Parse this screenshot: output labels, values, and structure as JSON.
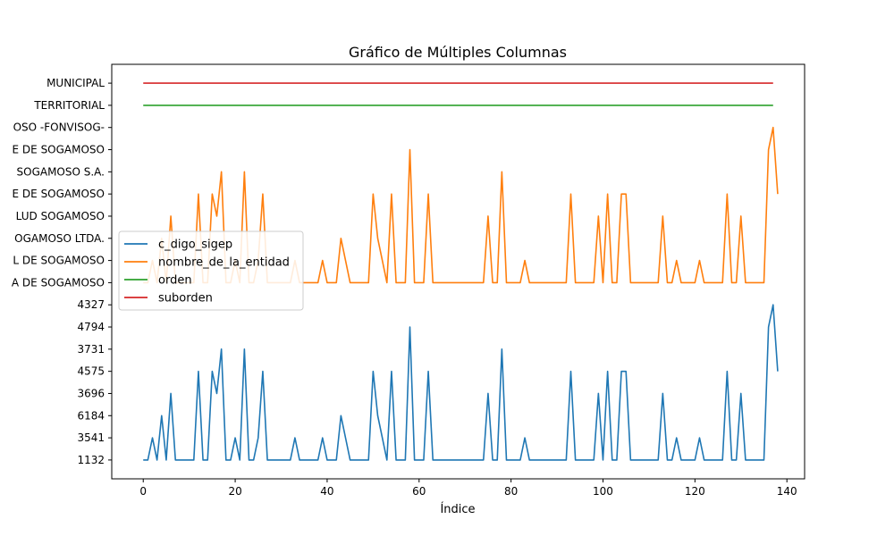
{
  "chart_data": {
    "type": "line",
    "title": "Gráfico de Múltiples Columnas",
    "xlabel": "Índice",
    "ylabel": "",
    "xlim": [
      -6.85,
      143.85
    ],
    "x_ticks": [
      0,
      20,
      40,
      60,
      80,
      100,
      120,
      140
    ],
    "y_categories": [
      "1132",
      "3541",
      "6184",
      "3696",
      "4575",
      "3731",
      "4794",
      "4327",
      "A DE SOGAMOSO",
      "L DE SOGAMOSO",
      "OGAMOSO LTDA.",
      "LUD SOGAMOSO",
      "E DE SOGAMOSO",
      "SOGAMOSO S.A.",
      "E DE SOGAMOSO",
      "OSO -FONVISOG-",
      "TERRITORIAL",
      "MUNICIPAL"
    ],
    "legend_position": "center-left",
    "grid": false,
    "series": [
      {
        "name": "c_digo_sigep",
        "color": "#1f77b4",
        "x_start": 0,
        "values": [
          0,
          0,
          1,
          0,
          2,
          0,
          3,
          0,
          0,
          0,
          0,
          0,
          4,
          0,
          0,
          4,
          3,
          5,
          0,
          0,
          1,
          0,
          5,
          0,
          0,
          1,
          4,
          0,
          0,
          0,
          0,
          0,
          0,
          1,
          0,
          0,
          0,
          0,
          0,
          1,
          0,
          0,
          0,
          2,
          1,
          0,
          0,
          0,
          0,
          0,
          4,
          2,
          1,
          0,
          4,
          0,
          0,
          0,
          6,
          0,
          0,
          0,
          4,
          0,
          0,
          0,
          0,
          0,
          0,
          0,
          0,
          0,
          0,
          0,
          0,
          3,
          0,
          0,
          5,
          0,
          0,
          0,
          0,
          1,
          0,
          0,
          0,
          0,
          0,
          0,
          0,
          0,
          0,
          4,
          0,
          0,
          0,
          0,
          0,
          3,
          0,
          4,
          0,
          0,
          4,
          4,
          0,
          0,
          0,
          0,
          0,
          0,
          0,
          3,
          0,
          0,
          1,
          0,
          0,
          0,
          0,
          1,
          0,
          0,
          0,
          0,
          0,
          4,
          0,
          0,
          3,
          0,
          0,
          0,
          0,
          0,
          6,
          7,
          4
        ]
      },
      {
        "name": "nombre_de_la_entidad",
        "color": "#ff7f0e",
        "x_start": 0,
        "values": [
          8,
          8,
          9,
          8,
          10,
          8,
          11,
          8,
          8,
          8,
          8,
          8,
          12,
          8,
          8,
          12,
          11,
          13,
          8,
          8,
          9,
          8,
          13,
          8,
          8,
          9,
          12,
          8,
          8,
          8,
          8,
          8,
          8,
          9,
          8,
          8,
          8,
          8,
          8,
          9,
          8,
          8,
          8,
          10,
          9,
          8,
          8,
          8,
          8,
          8,
          12,
          10,
          9,
          8,
          12,
          8,
          8,
          8,
          14,
          8,
          8,
          8,
          12,
          8,
          8,
          8,
          8,
          8,
          8,
          8,
          8,
          8,
          8,
          8,
          8,
          11,
          8,
          8,
          13,
          8,
          8,
          8,
          8,
          9,
          8,
          8,
          8,
          8,
          8,
          8,
          8,
          8,
          8,
          12,
          8,
          8,
          8,
          8,
          8,
          11,
          8,
          12,
          8,
          8,
          12,
          12,
          8,
          8,
          8,
          8,
          8,
          8,
          8,
          11,
          8,
          8,
          9,
          8,
          8,
          8,
          8,
          9,
          8,
          8,
          8,
          8,
          8,
          12,
          8,
          8,
          11,
          8,
          8,
          8,
          8,
          8,
          14,
          15,
          12
        ]
      },
      {
        "name": "orden",
        "color": "#2ca02c",
        "x_range": [
          0,
          137
        ],
        "constant": 16
      },
      {
        "name": "suborden",
        "color": "#d62728",
        "x_range": [
          0,
          137
        ],
        "constant": 17
      }
    ]
  }
}
